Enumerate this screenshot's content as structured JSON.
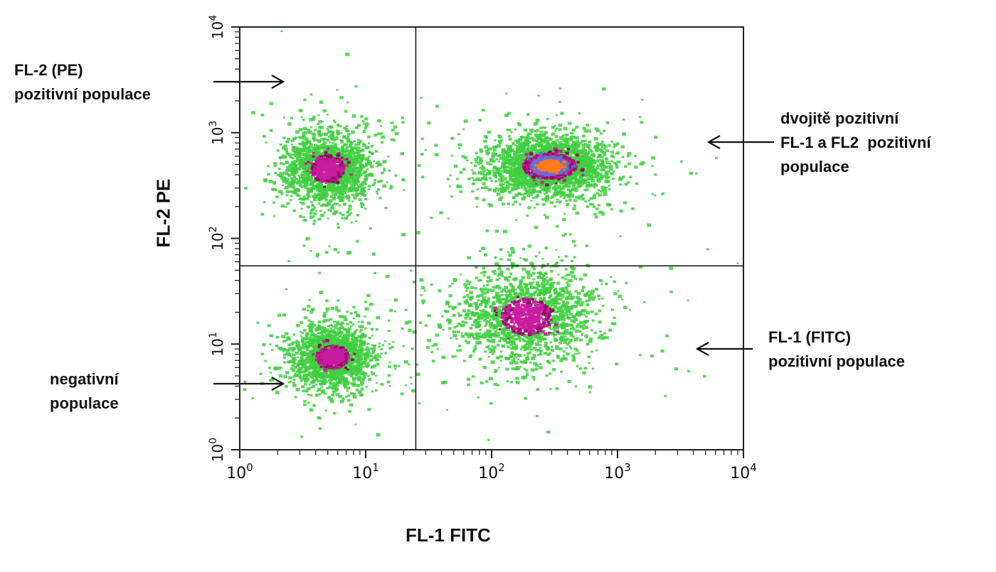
{
  "chart_data": {
    "type": "scatter",
    "subtype": "flow-cytometry-density-dot-plot",
    "xlabel": "FL-1 FITC",
    "ylabel": "FL-2 PE",
    "xscale": "log",
    "yscale": "log",
    "xlim": [
      1,
      10000
    ],
    "ylim": [
      1,
      10000
    ],
    "x_tick_labels": [
      {
        "value": 1,
        "base": "10",
        "exp": "0"
      },
      {
        "value": 10,
        "base": "10",
        "exp": "1"
      },
      {
        "value": 100,
        "base": "10",
        "exp": "2"
      },
      {
        "value": 1000,
        "base": "10",
        "exp": "3"
      },
      {
        "value": 10000,
        "base": "10",
        "exp": "4"
      }
    ],
    "y_tick_labels": [
      {
        "value": 1,
        "base": "10",
        "exp": "0"
      },
      {
        "value": 10,
        "base": "10",
        "exp": "1"
      },
      {
        "value": 100,
        "base": "10",
        "exp": "2"
      },
      {
        "value": 1000,
        "base": "10",
        "exp": "3"
      },
      {
        "value": 10000,
        "base": "10",
        "exp": "4"
      }
    ],
    "quadrant_gates": {
      "x": 25,
      "y": 55
    },
    "grid": false,
    "populations": [
      {
        "label": "FL-2 (PE) pozitivní populace",
        "center_x": 5,
        "center_y": 450,
        "spread_x": 0.17,
        "spread_y": 0.17,
        "density": "medium"
      },
      {
        "label": "dvojitě pozitivní FL-1 a FL2 pozitivní populace",
        "center_x": 290,
        "center_y": 480,
        "spread_x": 0.22,
        "spread_y": 0.13,
        "density": "high"
      },
      {
        "label": "negativní populace",
        "center_x": 5.5,
        "center_y": 7.5,
        "spread_x": 0.16,
        "spread_y": 0.14,
        "density": "medium"
      },
      {
        "label": "FL-1 (FITC) pozitivní populace",
        "center_x": 190,
        "center_y": 18,
        "spread_x": 0.26,
        "spread_y": 0.22,
        "density": "medium"
      }
    ],
    "density_colors": [
      "#3fcf3f",
      "#8a0f5a",
      "#c81ea0",
      "#3f7fdf",
      "#8a5fd0",
      "#ff7a1a"
    ],
    "annotations": {
      "pe_positive": {
        "lines": [
          "FL-2 (PE)",
          "pozitivní populace"
        ]
      },
      "double_positive": {
        "lines": [
          "dvojitě pozitivní",
          "FL-1 a FL2  pozitivní",
          "populace"
        ]
      },
      "negative": {
        "lines": [
          "negativní",
          "populace"
        ]
      },
      "fitc_positive": {
        "lines": [
          "FL-1 (FITC)",
          "pozitivní populace"
        ]
      }
    }
  }
}
